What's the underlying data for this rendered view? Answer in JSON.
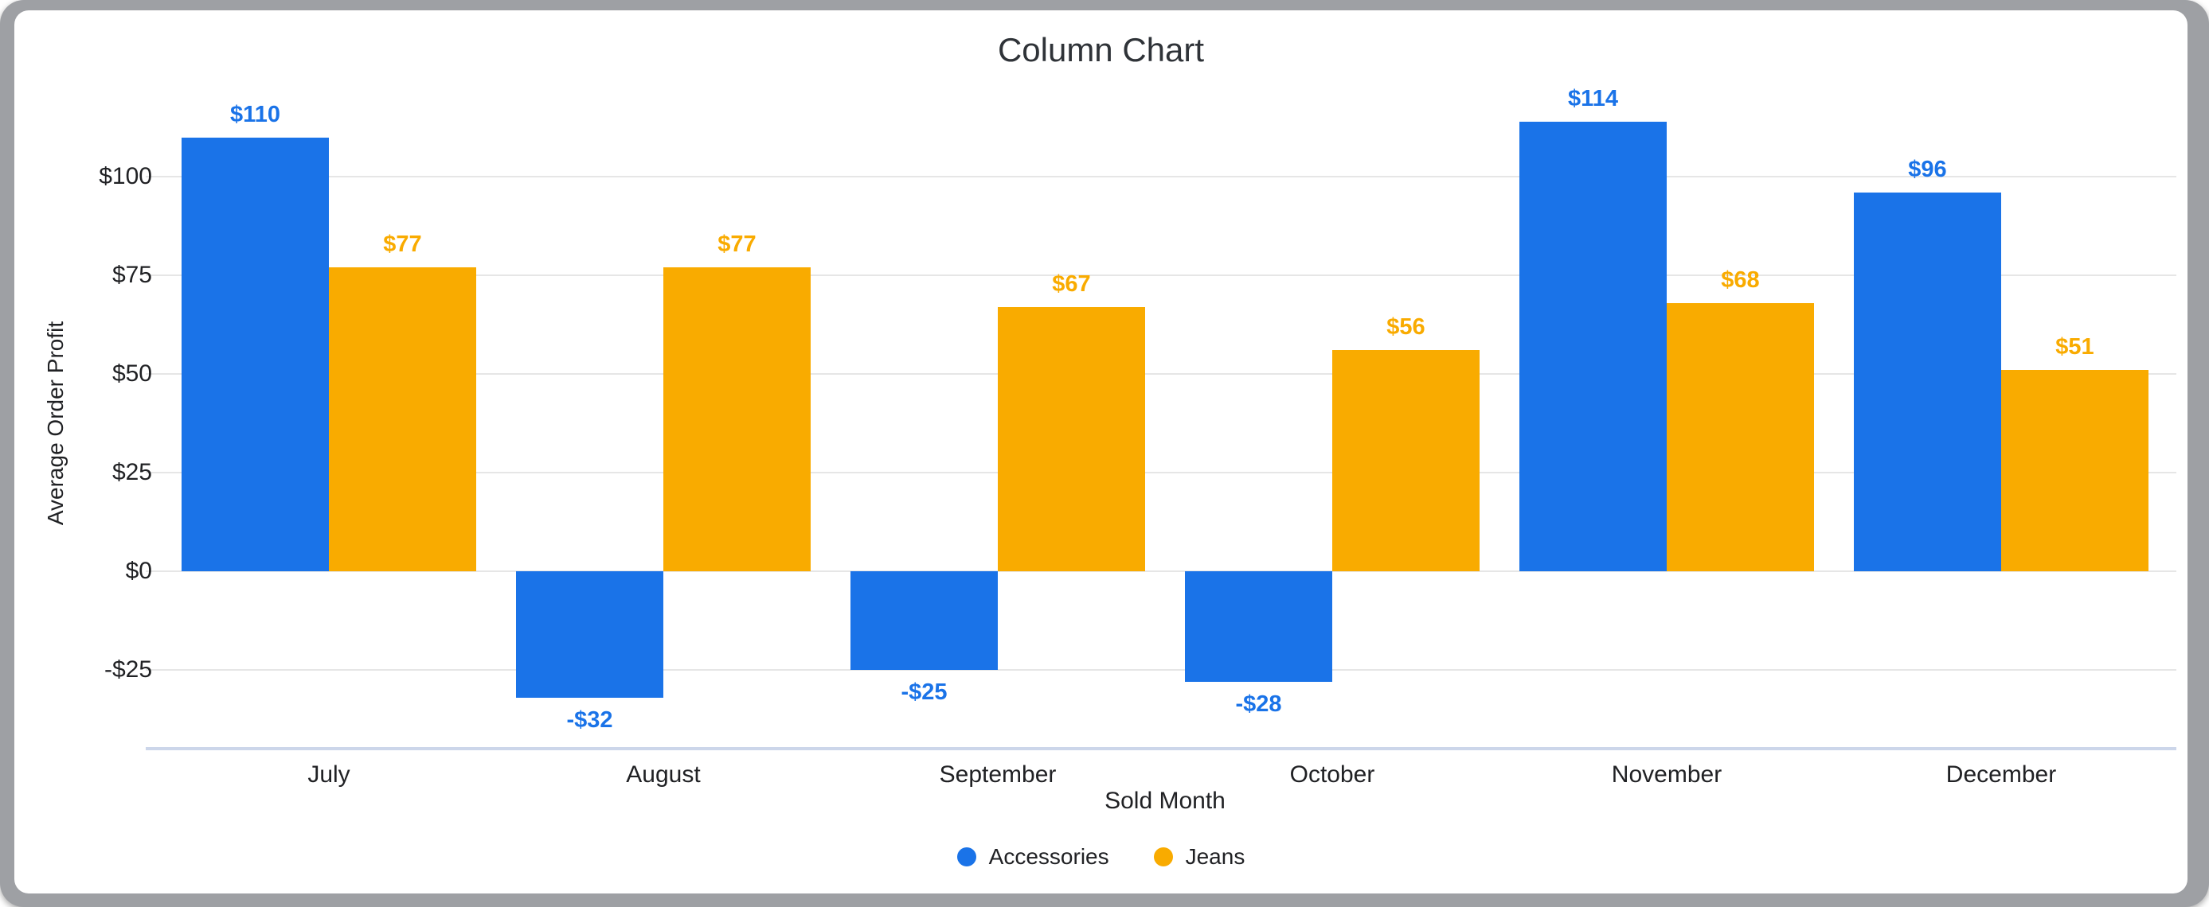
{
  "window": {
    "frame_color": "#9ea0a4",
    "card_color": "#ffffff"
  },
  "chart_data": {
    "type": "bar",
    "title": "Column Chart",
    "xlabel": "Sold Month",
    "ylabel": "Average Order Profit",
    "categories": [
      "July",
      "August",
      "September",
      "October",
      "November",
      "December"
    ],
    "series": [
      {
        "name": "Accessories",
        "color": "#1a73e8",
        "values": [
          110,
          -32,
          -25,
          -28,
          114,
          96
        ],
        "labels": [
          "$110",
          "-$32",
          "-$25",
          "-$28",
          "$114",
          "$96"
        ]
      },
      {
        "name": "Jeans",
        "color": "#f9ab00",
        "values": [
          77,
          77,
          67,
          56,
          68,
          51
        ],
        "labels": [
          "$77",
          "$77",
          "$67",
          "$56",
          "$68",
          "$51"
        ]
      }
    ],
    "ylim": [
      -45,
      120
    ],
    "yticks": [
      {
        "value": 100,
        "label": "$100"
      },
      {
        "value": 75,
        "label": "$75"
      },
      {
        "value": 50,
        "label": "$50"
      },
      {
        "value": 25,
        "label": "$25"
      },
      {
        "value": 0,
        "label": "$0"
      },
      {
        "value": -25,
        "label": "-$25"
      }
    ],
    "grid": true,
    "legend_position": "bottom",
    "colors": {
      "gridline": "#e6e6e6",
      "axis_line": "#ccd6ea",
      "title_text": "#2f3338",
      "label_text": "#202124"
    }
  }
}
